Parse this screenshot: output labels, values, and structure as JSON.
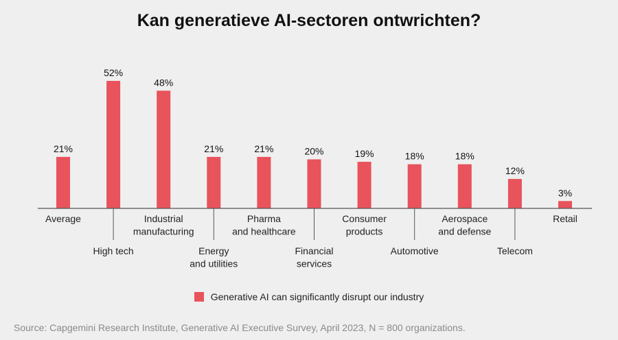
{
  "chart_data": {
    "type": "bar",
    "title": "Kan generatieve AI-sectoren ontwrichten?",
    "categories": [
      [
        "Average"
      ],
      [
        "High tech"
      ],
      [
        "Industrial",
        "manufacturing"
      ],
      [
        "Energy",
        "and utilities"
      ],
      [
        "Pharma",
        "and healthcare"
      ],
      [
        "Financial",
        "services"
      ],
      [
        "Consumer",
        "products"
      ],
      [
        "Automotive"
      ],
      [
        "Aerospace",
        "and defense"
      ],
      [
        "Telecom"
      ],
      [
        "Retail"
      ]
    ],
    "values": [
      21,
      52,
      48,
      21,
      21,
      20,
      19,
      18,
      18,
      12,
      3
    ],
    "value_labels": [
      "21%",
      "52%",
      "48%",
      "21%",
      "21%",
      "20%",
      "19%",
      "18%",
      "18%",
      "12%",
      "3%"
    ],
    "series_name": "Generative AI can significantly disrupt our industry",
    "ylim": [
      0,
      52
    ],
    "xlabel": "",
    "ylabel": "",
    "legend_position": "bottom-center"
  },
  "colors": {
    "bar": "#e8535c",
    "axis": "#555555"
  },
  "legend": {
    "label": "Generative AI can significantly disrupt our industry"
  },
  "source": "Source: Capgemini Research Institute, Generative AI Executive Survey, April 2023, N = 800 organizations."
}
